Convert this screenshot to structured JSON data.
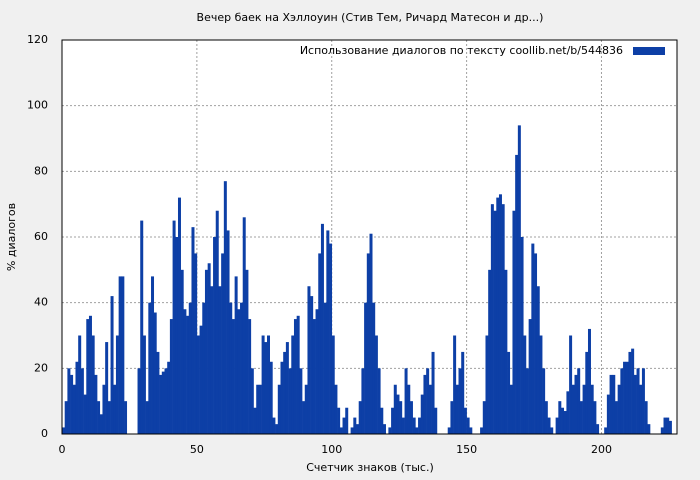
{
  "chart_data": {
    "type": "bar",
    "title": "Вечер баек на Хэллоуин (Стив Тем, Ричард Матесон и др...)",
    "x_label": "Счетчик знаков (тыс.)",
    "y_label": "% диалогов",
    "xlim": [
      0,
      228
    ],
    "ylim": [
      0,
      120
    ],
    "xticks": [
      0,
      50,
      100,
      150,
      200
    ],
    "yticks": [
      0,
      20,
      40,
      60,
      80,
      100,
      120
    ],
    "grid": true,
    "legend": "top-right",
    "x": [
      0,
      1,
      2,
      3,
      4,
      5,
      6,
      7,
      8,
      9,
      10,
      11,
      12,
      13,
      14,
      15,
      16,
      17,
      18,
      19,
      20,
      21,
      22,
      23,
      24,
      25,
      26,
      27,
      28,
      29,
      30,
      31,
      32,
      33,
      34,
      35,
      36,
      37,
      38,
      39,
      40,
      41,
      42,
      43,
      44,
      45,
      46,
      47,
      48,
      49,
      50,
      51,
      52,
      53,
      54,
      55,
      56,
      57,
      58,
      59,
      60,
      61,
      62,
      63,
      64,
      65,
      66,
      67,
      68,
      69,
      70,
      71,
      72,
      73,
      74,
      75,
      76,
      77,
      78,
      79,
      80,
      81,
      82,
      83,
      84,
      85,
      86,
      87,
      88,
      89,
      90,
      91,
      92,
      93,
      94,
      95,
      96,
      97,
      98,
      99,
      100,
      101,
      102,
      103,
      104,
      105,
      106,
      107,
      108,
      109,
      110,
      111,
      112,
      113,
      114,
      115,
      116,
      117,
      118,
      119,
      120,
      121,
      122,
      123,
      124,
      125,
      126,
      127,
      128,
      129,
      130,
      131,
      132,
      133,
      134,
      135,
      136,
      137,
      138,
      139,
      140,
      141,
      142,
      143,
      144,
      145,
      146,
      147,
      148,
      149,
      150,
      151,
      152,
      153,
      154,
      155,
      156,
      157,
      158,
      159,
      160,
      161,
      162,
      163,
      164,
      165,
      166,
      167,
      168,
      169,
      170,
      171,
      172,
      173,
      174,
      175,
      176,
      177,
      178,
      179,
      180,
      181,
      182,
      183,
      184,
      185,
      186,
      187,
      188,
      189,
      190,
      191,
      192,
      193,
      194,
      195,
      196,
      197,
      198,
      199,
      200,
      201,
      202,
      203,
      204,
      205,
      206,
      207,
      208,
      209,
      210,
      211,
      212,
      213,
      214,
      215,
      216,
      217,
      218,
      219,
      220,
      221,
      222,
      223,
      224,
      225
    ],
    "series": [
      {
        "name": "Использование диалогов по тексту  coollib.net/b/544836",
        "color": "#0d3fa6",
        "values": [
          2,
          10,
          20,
          18,
          15,
          22,
          30,
          20,
          12,
          35,
          36,
          30,
          18,
          10,
          6,
          15,
          28,
          10,
          42,
          15,
          30,
          48,
          48,
          10,
          0,
          0,
          0,
          0,
          20,
          65,
          30,
          10,
          40,
          48,
          37,
          25,
          18,
          19,
          20,
          22,
          35,
          65,
          60,
          72,
          50,
          38,
          36,
          40,
          63,
          55,
          30,
          33,
          40,
          50,
          52,
          45,
          60,
          68,
          45,
          55,
          77,
          62,
          40,
          35,
          48,
          38,
          40,
          66,
          50,
          35,
          20,
          8,
          15,
          15,
          30,
          28,
          30,
          22,
          5,
          3,
          15,
          22,
          25,
          28,
          20,
          30,
          35,
          36,
          20,
          10,
          15,
          45,
          42,
          35,
          38,
          55,
          64,
          40,
          62,
          58,
          30,
          15,
          8,
          2,
          5,
          8,
          0,
          2,
          5,
          3,
          10,
          20,
          40,
          55,
          61,
          40,
          30,
          20,
          8,
          3,
          0,
          2,
          8,
          15,
          12,
          10,
          5,
          20,
          15,
          10,
          5,
          2,
          5,
          12,
          18,
          20,
          15,
          25,
          8,
          0,
          0,
          0,
          0,
          2,
          10,
          30,
          15,
          20,
          25,
          8,
          5,
          2,
          0,
          0,
          0,
          2,
          10,
          30,
          50,
          70,
          68,
          72,
          73,
          70,
          50,
          25,
          15,
          68,
          85,
          94,
          60,
          30,
          20,
          35,
          58,
          55,
          45,
          30,
          20,
          10,
          5,
          2,
          0,
          5,
          10,
          8,
          7,
          13,
          30,
          15,
          18,
          20,
          10,
          15,
          25,
          32,
          15,
          10,
          3,
          0,
          0,
          2,
          12,
          18,
          18,
          10,
          15,
          20,
          22,
          22,
          25,
          26,
          18,
          20,
          15,
          20,
          10,
          3,
          0,
          0,
          0,
          0,
          2,
          5,
          5,
          4
        ]
      }
    ]
  }
}
